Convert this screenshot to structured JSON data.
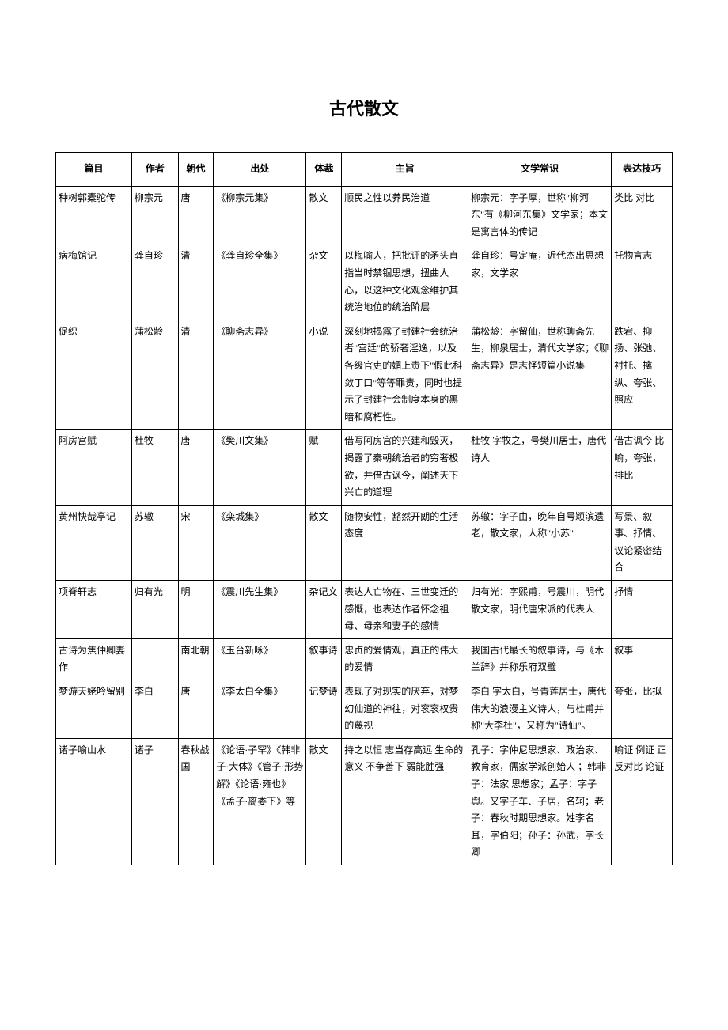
{
  "page_title": "古代散文",
  "columns": [
    "篇目",
    "作者",
    "朝代",
    "出处",
    "体裁",
    "主旨",
    "文学常识",
    "表达技巧"
  ],
  "rows": [
    {
      "title": "种树郭橐驼传",
      "author": "柳宗元",
      "dynasty": "唐",
      "source": "《柳宗元集》",
      "genre": "散文",
      "theme": "顺民之性以养民治道",
      "knowledge": "柳宗元：字子厚，世称\"柳河东\"有《柳河东集》文学家；本文是寓言体的传记",
      "technique": "类比 对比"
    },
    {
      "title": "病梅馆记",
      "author": "龚自珍",
      "dynasty": "清",
      "source": "《龚自珍全集》",
      "genre": "杂文",
      "theme": "以梅喻人，把批评的矛头直指当时禁锢思想，扭曲人心，以这种文化观念维护其统治地位的统治阶层",
      "knowledge": "龚自珍：号定庵，近代杰出思想家，文学家",
      "technique": "托物言志"
    },
    {
      "title": "促织",
      "author": "蒲松龄",
      "dynasty": "清",
      "source": "《聊斋志异》",
      "genre": "小说",
      "theme": "深刻地揭露了封建社会统治者\"宫廷\"的骄奢淫逸，以及各级官吏的媚上责下\"假此科敛丁口\"等等罪责，同时也提示了封建社会制度本身的黑暗和腐朽性。",
      "knowledge": "蒲松龄：字留仙，世称聊斋先生，柳泉居士，清代文学家；《聊斋志异》是志怪短篇小说集",
      "technique": "跌宕、抑扬、张弛、衬托、擒纵、夸张、照应"
    },
    {
      "title": "阿房宫赋",
      "author": "杜牧",
      "dynasty": "唐",
      "source": "《樊川文集》",
      "genre": "赋",
      "theme": "借写阿房宫的兴建和毁灭，揭露了秦朝统治者的穷奢极欲，并借古讽今，阐述天下兴亡的道理",
      "knowledge": "杜牧 字牧之，号樊川居士，唐代诗人",
      "technique": "借古讽今 比喻，夸张，排比"
    },
    {
      "title": "黄州快哉亭记",
      "author": "苏辙",
      "dynasty": "宋",
      "source": "《栾城集》",
      "genre": "散文",
      "theme": "随物安性，豁然开朗的生活态度",
      "knowledge": "苏辙：字子由，晚年自号颖滨遗老，散文家，人称\"小苏\"",
      "technique": "写景、叙事、抒情、议论紧密结合"
    },
    {
      "title": "项脊轩志",
      "author": "归有光",
      "dynasty": "明",
      "source": "《震川先生集》",
      "genre": "杂记文",
      "theme": "表达人亡物在、三世变迁的感慨，也表达作者怀念祖母、母亲和妻子的感情",
      "knowledge": "归有光：字熙甫，号震川，明代散文家，明代唐宋派的代表人",
      "technique": "抒情"
    },
    {
      "title": "古诗为焦仲卿妻作",
      "author": "",
      "dynasty": "南北朝",
      "source": "《玉台新咏》",
      "genre": "叙事诗",
      "theme": "忠贞的爱情观，真正的伟大的爱情",
      "knowledge": "我国古代最长的叙事诗，与《木兰辞》并称乐府双璧",
      "technique": "叙事"
    },
    {
      "title": "梦游天姥吟留别",
      "author": "李白",
      "dynasty": "唐",
      "source": "《李太白全集》",
      "genre": "记梦诗",
      "theme": "表现了对现实的厌弃，对梦幻仙道的神往，对衮衮权贵的蔑视",
      "knowledge": "李白 字太白，号青莲居士，唐代伟大的浪漫主义诗人，与杜甫并称\"大李杜\"，又称为\"诗仙\"。",
      "technique": "夸张，比拟"
    },
    {
      "title": "诸子喻山水",
      "author": "诸子",
      "dynasty": "春秋战国",
      "source": "《论语·子罕》《韩非子·大体》《管子·形势解》《论语·雍也》《孟子·离娄下》等",
      "genre": "散文",
      "theme": "持之以恒 志当存高远 生命的意义 不争善下 弱能胜强",
      "knowledge": "孔子：字仲尼思想家、政治家、教育家，儒家学派创始人 ；韩非子：法家 思想家；孟子：字子舆。又字子车、子居，名轲；老子：春秋时期思想家。姓李名耳，字伯阳；孙子：孙武，字长卿",
      "technique": "喻证 例证 正反对比 论证"
    }
  ]
}
